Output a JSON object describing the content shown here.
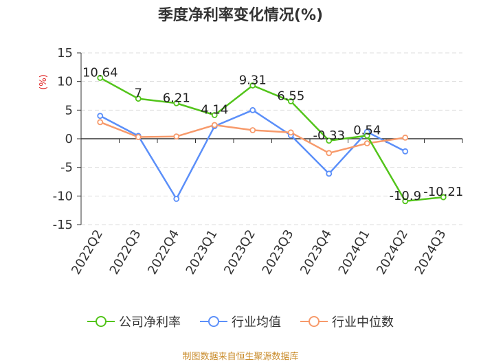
{
  "chart_data": {
    "type": "line",
    "title": "季度净利率变化情况(%)",
    "unit_label": "(%)",
    "categories": [
      "2022Q2",
      "2022Q3",
      "2022Q4",
      "2023Q1",
      "2023Q2",
      "2023Q3",
      "2023Q4",
      "2024Q1",
      "2024Q2",
      "2024Q3"
    ],
    "ylim": [
      -15,
      15
    ],
    "yticks": [
      15,
      10,
      5,
      0,
      -5,
      -10,
      -15
    ],
    "grid": true,
    "legend_position": "bottom",
    "series": [
      {
        "name": "公司净利率",
        "color": "#52c41a",
        "values": [
          10.64,
          7,
          6.21,
          4.14,
          9.31,
          6.55,
          -0.33,
          0.54,
          -10.9,
          -10.21
        ],
        "labels": [
          "10.64",
          "7",
          "6.21",
          "4.14",
          "9.31",
          "6.55",
          "-0.33",
          "0.54",
          "-10.9",
          "-10.21"
        ]
      },
      {
        "name": "行业均值",
        "color": "#5b8ff9",
        "values": [
          4.0,
          0.5,
          -10.5,
          2.2,
          5.0,
          0.6,
          -6.1,
          1.2,
          -2.2,
          null
        ]
      },
      {
        "name": "行业中位数",
        "color": "#f79a6b",
        "values": [
          2.9,
          0.3,
          0.4,
          2.4,
          1.5,
          1.1,
          -2.5,
          -0.8,
          0.2,
          null
        ]
      }
    ]
  },
  "source": "制图数据来自恒生聚源数据库"
}
